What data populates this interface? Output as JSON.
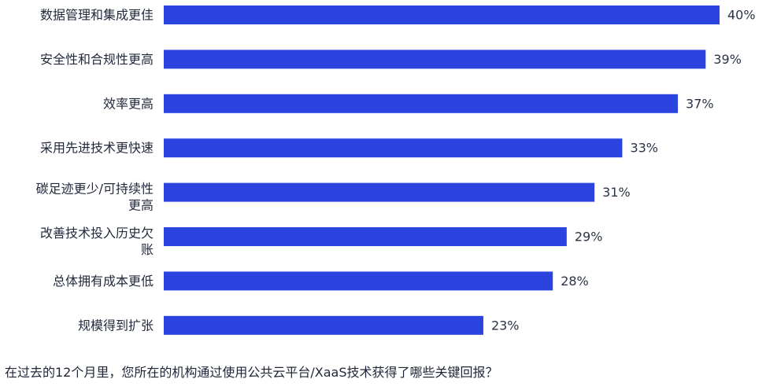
{
  "chart_data": {
    "type": "bar",
    "orientation": "horizontal",
    "categories": [
      "数据管理和集成更佳",
      "安全性和合规性更高",
      "效率更高",
      "采用先进技术更快速",
      "碳足迹更少/可持续性更高",
      "改善技术投入历史欠账",
      "总体拥有成本更低",
      "规模得到扩张"
    ],
    "category_lines": [
      [
        "数据管理和集成更佳"
      ],
      [
        "安全性和合规性更高"
      ],
      [
        "效率更高"
      ],
      [
        "采用先进技术更快速"
      ],
      [
        "碳足迹更少/可持续性",
        "更高"
      ],
      [
        "改善技术投入历史欠",
        "账"
      ],
      [
        "总体拥有成本更低"
      ],
      [
        "规模得到扩张"
      ]
    ],
    "values": [
      40,
      39,
      37,
      33,
      31,
      29,
      28,
      23
    ],
    "value_labels": [
      "40%",
      "39%",
      "37%",
      "33%",
      "31%",
      "29%",
      "28%",
      "23%"
    ],
    "unit": "%",
    "xlim": [
      0,
      40
    ],
    "bar_color": "#2b44e0",
    "grid": false,
    "legend": "none",
    "title": "",
    "xlabel": "",
    "ylabel": ""
  },
  "footnote": "在过去的12个月里，您所在的机构通过使用公共云平台/XaaS技术获得了哪些关键回报？"
}
